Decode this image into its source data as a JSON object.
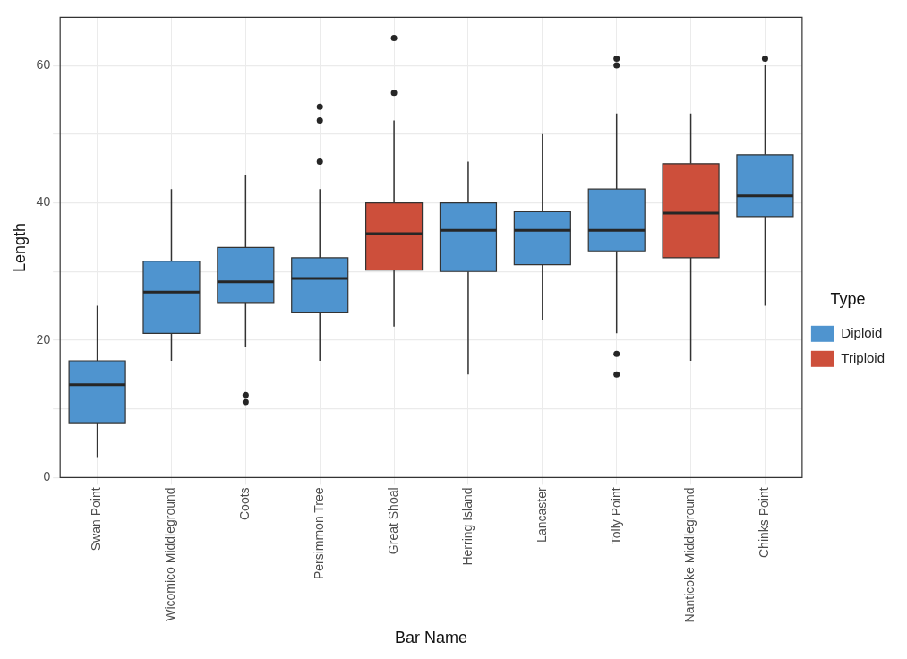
{
  "chart_data": {
    "type": "box",
    "xlabel": "Bar Name",
    "ylabel": "Length",
    "legend_title": "Type",
    "legend": "right",
    "grid": true,
    "categories": [
      "Swan Point",
      "Wicomico Middleground",
      "Coots",
      "Persimmon Tree",
      "Great Shoal",
      "Herring Island",
      "Lancaster",
      "Tolly Point",
      "Nanticoke Middleground",
      "Chinks Point"
    ],
    "ylim": [
      0,
      67
    ],
    "yticks": [
      0,
      {
        "value": 10,
        "label": null
      },
      20,
      {
        "value": 30,
        "label": null
      },
      40,
      {
        "value": 50,
        "label": null
      },
      60
    ],
    "series": [
      {
        "name": "Diploid",
        "color": "#4f94cf",
        "boxes": [
          {
            "low": 3,
            "q1": 8,
            "median": 13.5,
            "q3": 17,
            "high": 25
          },
          {
            "low": 17,
            "q1": 21,
            "median": 27,
            "q3": 31.5,
            "high": 42
          },
          {
            "low": 19,
            "q1": 25.5,
            "median": 28.5,
            "q3": 33.5,
            "high": 44,
            "outliers": [
              11,
              12
            ]
          },
          {
            "low": 17,
            "q1": 24,
            "median": 29,
            "q3": 32,
            "high": 42,
            "outliers": [
              46,
              52,
              54
            ]
          },
          null,
          {
            "low": 15,
            "q1": 30,
            "median": 36,
            "q3": 40,
            "high": 46
          },
          {
            "low": 23,
            "q1": 31,
            "median": 36,
            "q3": 38.7,
            "high": 50
          },
          {
            "low": 21,
            "q1": 33,
            "median": 36,
            "q3": 42,
            "high": 53,
            "outliers": [
              15,
              18,
              60,
              61
            ]
          },
          null,
          {
            "low": 25,
            "q1": 38,
            "median": 41,
            "q3": 47,
            "high": 60,
            "outliers": [
              61
            ]
          }
        ]
      },
      {
        "name": "Triploid",
        "color": "#cd4f3b",
        "boxes": [
          null,
          null,
          null,
          null,
          {
            "low": 22,
            "q1": 30.2,
            "median": 35.5,
            "q3": 40,
            "high": 52,
            "outliers": [
              56,
              64
            ]
          },
          null,
          null,
          null,
          {
            "low": 17,
            "q1": 32,
            "median": 38.5,
            "q3": 45.7,
            "high": 53
          },
          null
        ]
      }
    ]
  }
}
